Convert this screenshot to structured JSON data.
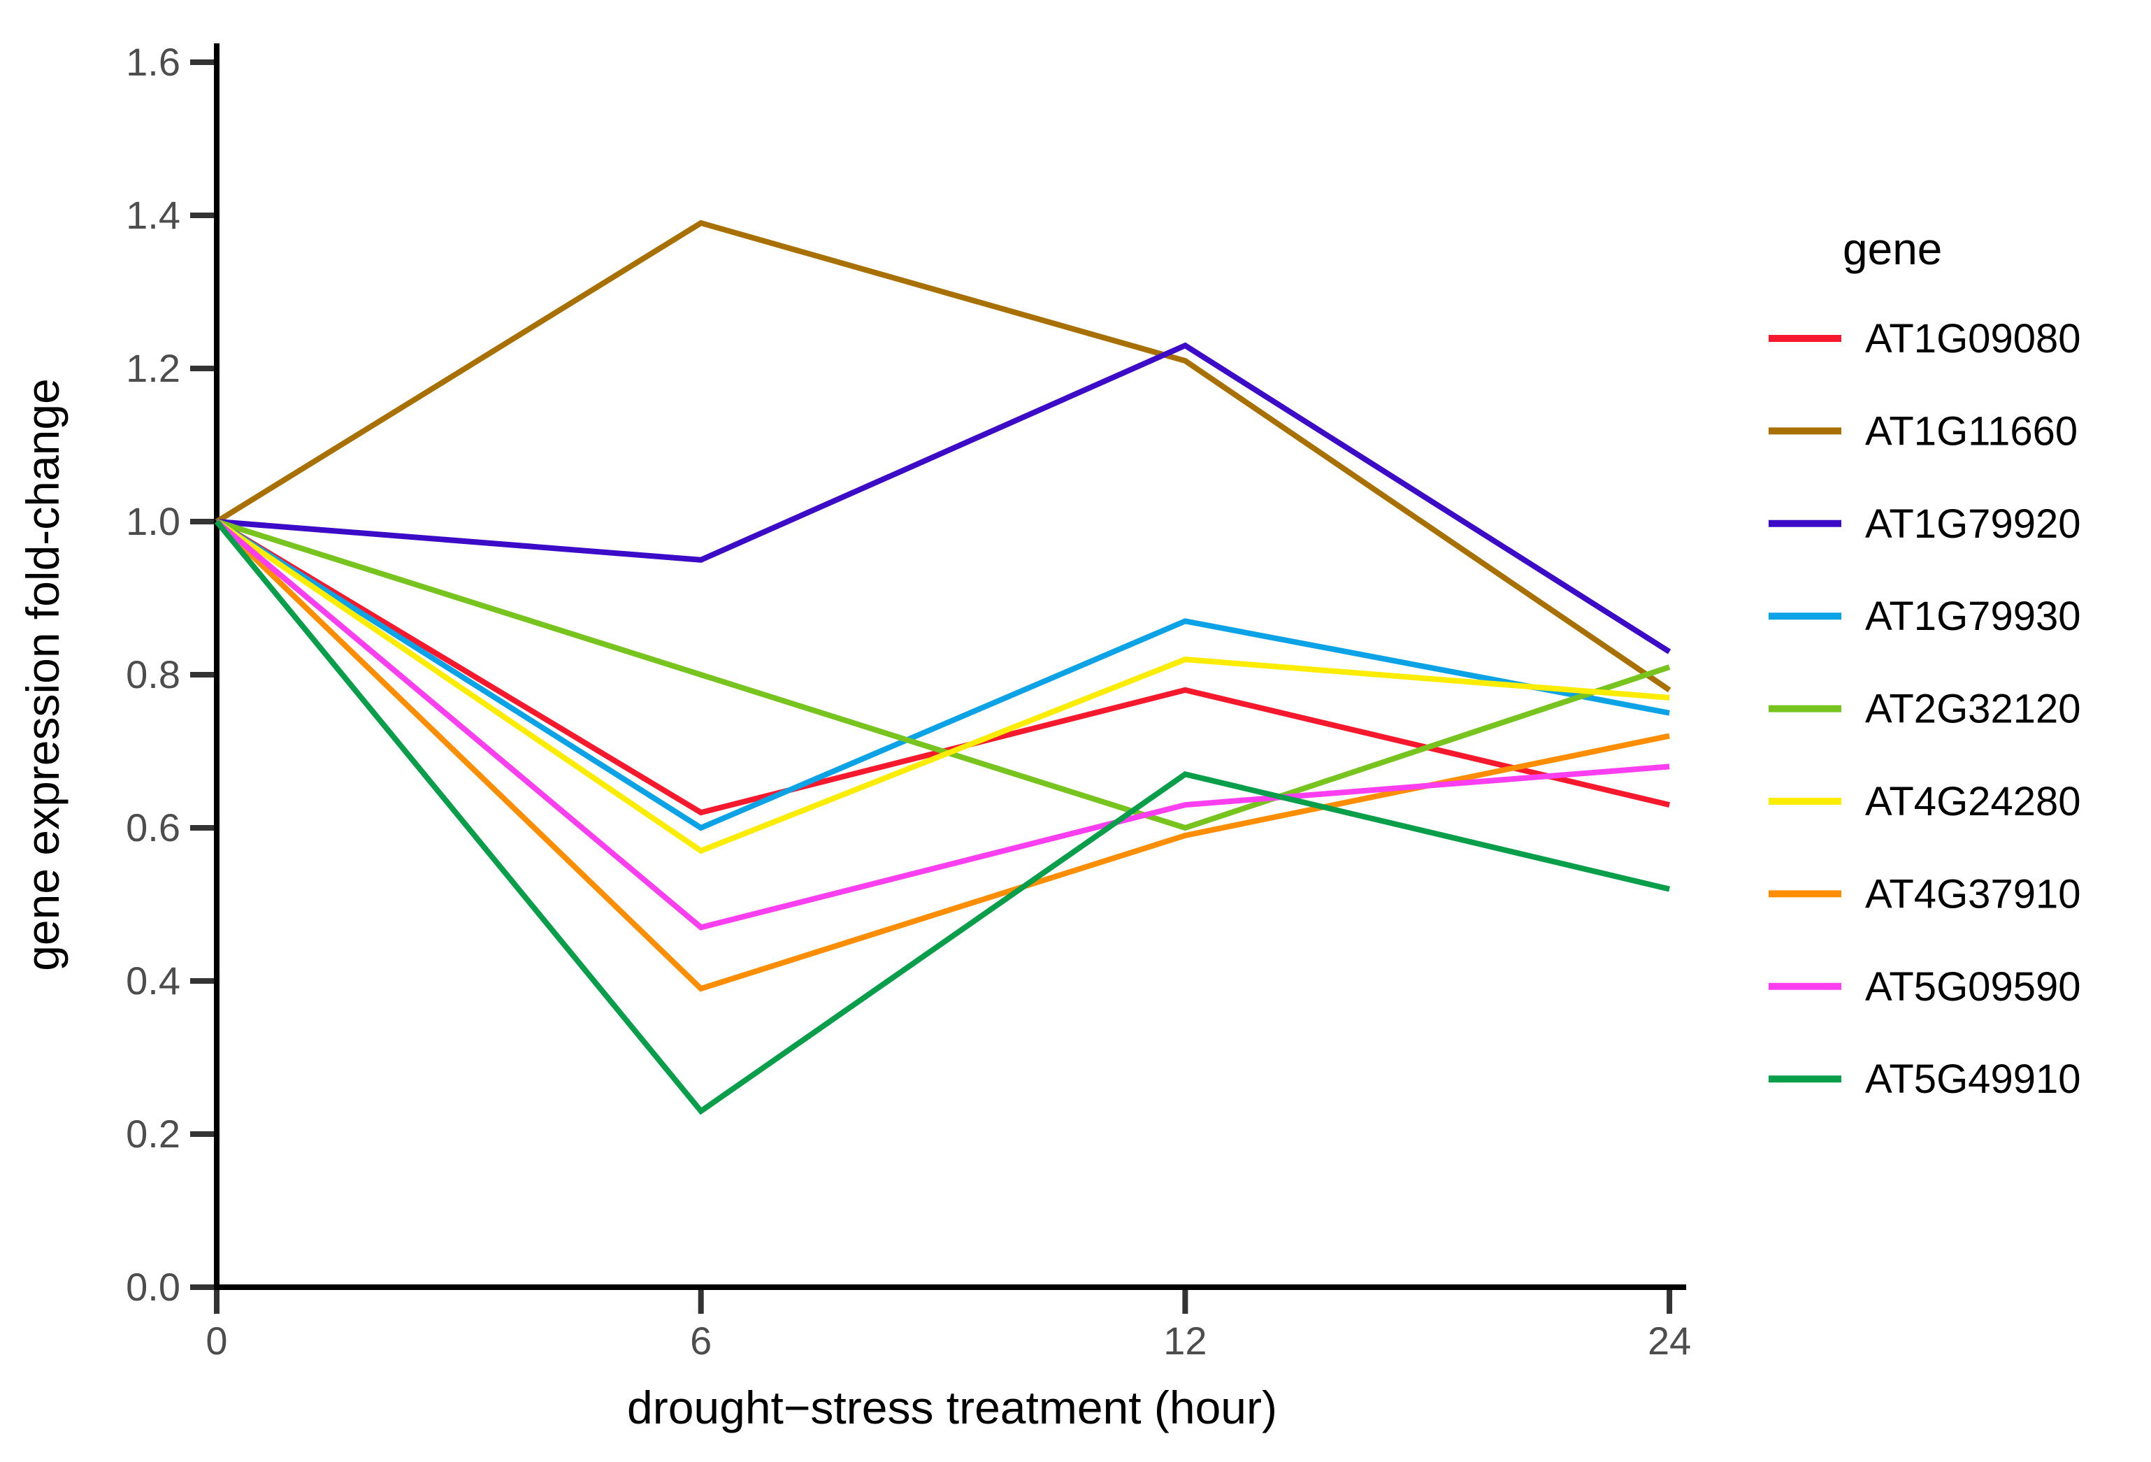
{
  "chart_data": {
    "type": "line",
    "title": "",
    "xlabel": "drought−stress treatment (hour)",
    "ylabel": "gene expression fold-change",
    "legend_title": "gene",
    "legend_position": "right",
    "grid": false,
    "x": [
      0,
      6,
      12,
      24
    ],
    "x_tick_labels": [
      "0",
      "6",
      "12",
      "24"
    ],
    "x_spacing": "categorical-even",
    "ylim": [
      0.0,
      1.6
    ],
    "y_ticks": [
      0.0,
      0.2,
      0.4,
      0.6,
      0.8,
      1.0,
      1.2,
      1.4,
      1.6
    ],
    "y_tick_labels": [
      "0.0",
      "0.2",
      "0.4",
      "0.6",
      "0.8",
      "1.0",
      "1.2",
      "1.4",
      "1.6"
    ],
    "series": [
      {
        "name": "AT1G09080",
        "color": "#F6192D",
        "values": [
          1.0,
          0.62,
          0.78,
          0.63
        ]
      },
      {
        "name": "AT1G11660",
        "color": "#A87001",
        "values": [
          1.0,
          1.39,
          1.21,
          0.78
        ]
      },
      {
        "name": "AT1G79920",
        "color": "#3C0BC8",
        "values": [
          1.0,
          0.95,
          1.23,
          0.83
        ]
      },
      {
        "name": "AT1G79930",
        "color": "#0BA2E6",
        "values": [
          1.0,
          0.6,
          0.87,
          0.75
        ]
      },
      {
        "name": "AT2G32120",
        "color": "#77C41F",
        "values": [
          1.0,
          0.8,
          0.6,
          0.81
        ]
      },
      {
        "name": "AT4G24280",
        "color": "#FCEC00",
        "values": [
          1.0,
          0.57,
          0.82,
          0.77
        ]
      },
      {
        "name": "AT4G37910",
        "color": "#FF8D00",
        "values": [
          1.0,
          0.39,
          0.59,
          0.72
        ]
      },
      {
        "name": "AT5G09590",
        "color": "#FB3EEF",
        "values": [
          1.0,
          0.47,
          0.63,
          0.68
        ]
      },
      {
        "name": "AT5G49910",
        "color": "#089E4A",
        "values": [
          1.0,
          0.23,
          0.67,
          0.52
        ]
      }
    ],
    "colors": {
      "axis_line": "#000000",
      "tick_mark": "#333333",
      "tick_text": "#4d4d4d",
      "title_text": "#000000",
      "background": "#ffffff"
    }
  }
}
